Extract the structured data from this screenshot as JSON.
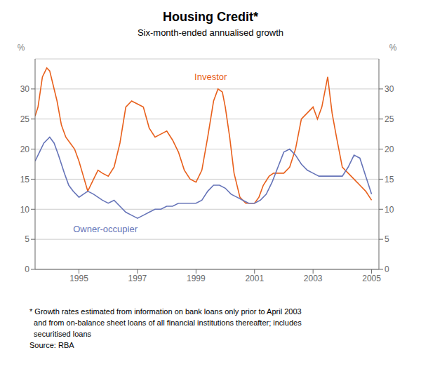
{
  "chart_data": {
    "type": "line",
    "title": "Housing Credit*",
    "subtitle": "Six-month-ended annualised growth",
    "footnote": "* Growth rates estimated from information on bank loans only prior to April 2003\n  and from on-balance sheet loans of all financial institutions thereafter; includes\n  securitised loans",
    "source": "Source: RBA",
    "ylabel": "%",
    "y2label": "%",
    "xlim": [
      1993.5,
      2005.25
    ],
    "xticks": [
      1995,
      1997,
      1999,
      2001,
      2003,
      2005
    ],
    "ylim": [
      0,
      35
    ],
    "yticks": [
      0,
      5,
      10,
      15,
      20,
      25,
      30
    ],
    "y2lim": [
      0,
      35
    ],
    "y2ticks": [
      0,
      5,
      10,
      15,
      20,
      25,
      30
    ],
    "grid": true,
    "series": [
      {
        "name": "Investor",
        "color": "#E8601C",
        "x": [
          1993.5,
          1993.6,
          1993.75,
          1993.9,
          1994.0,
          1994.1,
          1994.25,
          1994.4,
          1994.55,
          1994.7,
          1994.85,
          1995.0,
          1995.15,
          1995.3,
          1995.5,
          1995.65,
          1995.8,
          1996.0,
          1996.2,
          1996.4,
          1996.6,
          1996.8,
          1997.0,
          1997.2,
          1997.4,
          1997.6,
          1997.8,
          1998.0,
          1998.2,
          1998.4,
          1998.6,
          1998.8,
          1999.0,
          1999.2,
          1999.4,
          1999.6,
          1999.75,
          1999.9,
          2000.0,
          2000.15,
          2000.3,
          2000.5,
          2000.7,
          2000.9,
          2001.0,
          2001.15,
          2001.3,
          2001.5,
          2001.65,
          2001.8,
          2002.0,
          2002.2,
          2002.4,
          2002.6,
          2002.8,
          2003.0,
          2003.15,
          2003.3,
          2003.5,
          2003.65,
          2003.8,
          2004.0,
          2004.2,
          2004.4,
          2004.6,
          2004.8,
          2005.0
        ],
        "values": [
          25.5,
          27,
          32,
          33.5,
          33,
          31,
          28,
          24,
          22,
          21,
          20,
          18,
          15.5,
          13,
          15,
          16.5,
          16,
          15.5,
          17,
          21,
          27,
          28,
          27.5,
          27,
          23.5,
          22,
          22.5,
          23,
          21.5,
          19.5,
          16.5,
          15,
          14.5,
          16.5,
          22,
          28,
          30,
          29.5,
          27,
          22,
          16,
          12,
          11,
          11,
          11,
          12,
          14,
          15.5,
          16,
          16,
          16,
          17,
          20,
          25,
          26,
          27,
          25,
          27,
          32,
          26,
          22,
          17,
          16,
          15,
          14,
          13,
          11.5
        ]
      },
      {
        "name": "Owner-occupier",
        "color": "#6674B8",
        "x": [
          1993.5,
          1993.65,
          1993.8,
          1994.0,
          1994.15,
          1994.3,
          1994.5,
          1994.65,
          1994.8,
          1995.0,
          1995.15,
          1995.3,
          1995.5,
          1995.65,
          1995.8,
          1996.0,
          1996.2,
          1996.4,
          1996.6,
          1996.8,
          1997.0,
          1997.2,
          1997.4,
          1997.6,
          1997.8,
          1998.0,
          1998.2,
          1998.4,
          1998.6,
          1998.8,
          1999.0,
          1999.2,
          1999.4,
          1999.6,
          1999.8,
          2000.0,
          2000.2,
          2000.4,
          2000.6,
          2000.8,
          2001.0,
          2001.2,
          2001.4,
          2001.6,
          2001.8,
          2002.0,
          2002.2,
          2002.4,
          2002.6,
          2002.8,
          2003.0,
          2003.2,
          2003.4,
          2003.6,
          2003.8,
          2004.0,
          2004.2,
          2004.4,
          2004.6,
          2004.8,
          2005.0
        ],
        "values": [
          18,
          19.5,
          21,
          22,
          21,
          19,
          16,
          14,
          13,
          12,
          12.5,
          13,
          12.5,
          12,
          11.5,
          11,
          11.5,
          10.5,
          9.5,
          9,
          8.5,
          9,
          9.5,
          10,
          10,
          10.5,
          10.5,
          11,
          11,
          11,
          11,
          11.5,
          13,
          14,
          14,
          13.5,
          12.5,
          12,
          11.5,
          11,
          11,
          11.5,
          12.5,
          14.5,
          17,
          19.5,
          20,
          19,
          17.5,
          16.5,
          16,
          15.5,
          15.5,
          15.5,
          15.5,
          15.5,
          17,
          19,
          18.5,
          15.5,
          12.5
        ]
      }
    ]
  }
}
